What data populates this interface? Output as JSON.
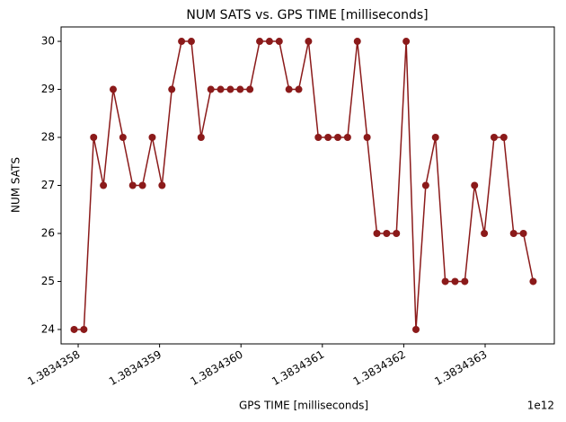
{
  "chart_data": {
    "type": "line",
    "title": "NUM SATS vs. GPS TIME [milliseconds]",
    "x_label": "GPS TIME [milliseconds]",
    "y_label": "NUM SATS",
    "x_offset_label": "1e12",
    "x": [
      1383435795000,
      1383435807000,
      1383435819000,
      1383435831000,
      1383435843000,
      1383435855000,
      1383435867000,
      1383435879000,
      1383435891000,
      1383435903000,
      1383435915000,
      1383435927000,
      1383435939000,
      1383435951000,
      1383435963000,
      1383435975000,
      1383435987000,
      1383435999000,
      1383436011000,
      1383436023000,
      1383436035000,
      1383436047000,
      1383436059000,
      1383436071000,
      1383436083000,
      1383436095000,
      1383436107000,
      1383436119000,
      1383436131000,
      1383436143000,
      1383436155000,
      1383436167000,
      1383436179000,
      1383436191000,
      1383436203000,
      1383436215000,
      1383436227000,
      1383436239000,
      1383436251000,
      1383436263000,
      1383436275000,
      1383436287000,
      1383436299000,
      1383436311000,
      1383436323000,
      1383436335000,
      1383436347000,
      1383436359000
    ],
    "series": [
      {
        "name": "NUM SATS",
        "color": "#8b1a1a",
        "values": [
          24,
          24,
          28,
          27,
          29,
          28,
          27,
          27,
          28,
          27,
          29,
          30,
          30,
          28,
          29,
          29,
          29,
          29,
          29,
          30,
          30,
          30,
          29,
          29,
          30,
          28,
          28,
          28,
          28,
          30,
          28,
          26,
          26,
          26,
          30,
          24,
          27,
          28,
          25,
          25,
          25,
          27,
          26,
          28,
          28,
          26,
          26,
          25
        ]
      }
    ],
    "xlim": [
      1383435779000,
      1383436385000
    ],
    "xticks": [
      {
        "value": 1383435800000,
        "label": "1.3834358"
      },
      {
        "value": 1383435900000,
        "label": "1.3834359"
      },
      {
        "value": 1383436000000,
        "label": "1.3834360"
      },
      {
        "value": 1383436100000,
        "label": "1.3834361"
      },
      {
        "value": 1383436200000,
        "label": "1.3834362"
      },
      {
        "value": 1383436300000,
        "label": "1.3834363"
      }
    ],
    "ylim": [
      23.7,
      30.3
    ],
    "yticks": [
      24,
      25,
      26,
      27,
      28,
      29,
      30
    ]
  }
}
